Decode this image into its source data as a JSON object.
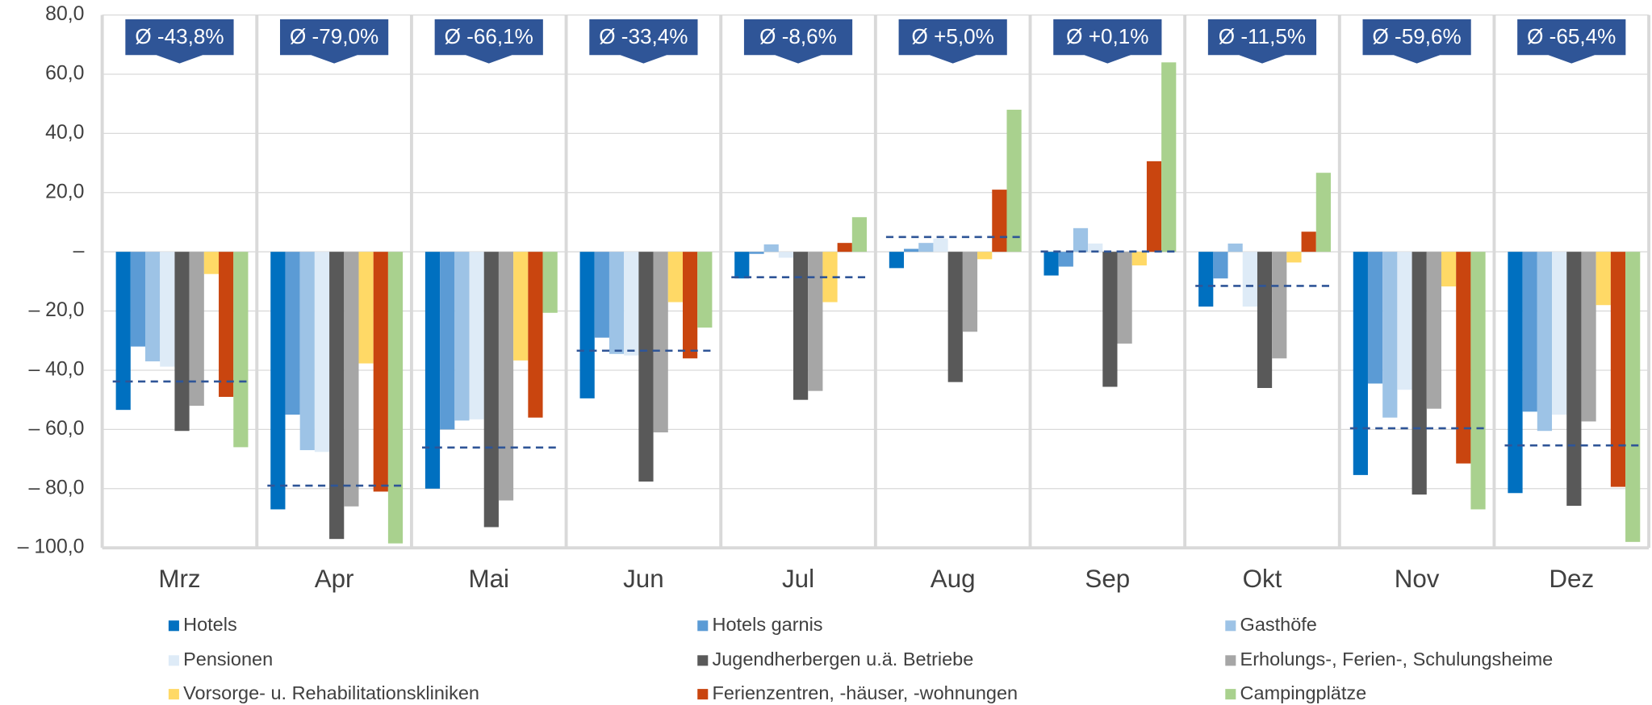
{
  "chart_data": {
    "type": "bar",
    "categories": [
      "Mrz",
      "Apr",
      "Mai",
      "Jun",
      "Jul",
      "Aug",
      "Sep",
      "Okt",
      "Nov",
      "Dez"
    ],
    "series": [
      {
        "name": "Hotels",
        "color": "#0070c0",
        "values": [
          -53.4,
          -87,
          -80,
          -49.5,
          -9,
          -5.5,
          -8,
          -18.5,
          -75.4,
          -81.5
        ]
      },
      {
        "name": "Hotels garnis",
        "color": "#5b9bd5",
        "values": [
          -32,
          -55,
          -60,
          -29,
          -0.7,
          1,
          -5,
          -9,
          -44.5,
          -54
        ]
      },
      {
        "name": "Gasthöfe",
        "color": "#9dc3e6",
        "values": [
          -37,
          -67,
          -57,
          -34.5,
          2.5,
          3,
          8,
          2.8,
          -56,
          -60.5
        ]
      },
      {
        "name": "Pensionen",
        "color": "#deebf7",
        "values": [
          -38.8,
          -67.6,
          -56.6,
          -35,
          -2,
          4.5,
          2.8,
          -18.5,
          -46.6,
          -55
        ]
      },
      {
        "name": "Jugendherbergen u.ä. Betriebe",
        "color": "#595959",
        "values": [
          -60.5,
          -97,
          -93,
          -77.6,
          -50,
          -44,
          -45.6,
          -46,
          -82,
          -85.8
        ]
      },
      {
        "name": "Erholungs-, Ferien-, Schulungsheime",
        "color": "#a6a6a6",
        "values": [
          -52,
          -86,
          -84,
          -61,
          -47,
          -27,
          -31,
          -36,
          -53,
          -57.3
        ]
      },
      {
        "name": "Vorsorge- u. Rehabilitationskliniken",
        "color": "#ffd966",
        "values": [
          -7.5,
          -37.7,
          -36.7,
          -17,
          -17,
          -2.5,
          -4.6,
          -3.6,
          -11.7,
          -18
        ]
      },
      {
        "name": "Ferienzentren, -häuser, -wohnungen",
        "color": "#c9450f",
        "values": [
          -49,
          -81,
          -56,
          -36,
          3,
          21,
          30.6,
          6.8,
          -71.5,
          -79.4
        ]
      },
      {
        "name": "Campingplätze",
        "color": "#a9d18e",
        "values": [
          -66,
          -98.5,
          -20.6,
          -25.6,
          11.7,
          48,
          64,
          26.7,
          -87,
          -98
        ]
      }
    ],
    "averages": [
      -43.8,
      -79.0,
      -66.1,
      -33.4,
      -8.6,
      5.0,
      0.1,
      -11.5,
      -59.6,
      -65.4
    ],
    "average_labels": [
      "Ø -43,8%",
      "Ø -79,0%",
      "Ø -66,1%",
      "Ø -33,4%",
      "Ø -8,6%",
      "Ø +5,0%",
      "Ø +0,1%",
      "Ø -11,5%",
      "Ø -59,6%",
      "Ø -65,4%"
    ],
    "average_color": "#2f5597",
    "ylim": [
      -100,
      80
    ],
    "yticks": [
      {
        "value": 80,
        "label": "80,0"
      },
      {
        "value": 60,
        "label": "60,0"
      },
      {
        "value": 40,
        "label": "40,0"
      },
      {
        "value": 20,
        "label": "20,0"
      },
      {
        "value": 0,
        "label": "–"
      },
      {
        "value": -20,
        "label": "– 20,0"
      },
      {
        "value": -40,
        "label": "– 40,0"
      },
      {
        "value": -60,
        "label": "– 60,0"
      },
      {
        "value": -80,
        "label": "– 80,0"
      },
      {
        "value": -100,
        "label": "– 100,0"
      }
    ],
    "grid": true,
    "legend": "bottom"
  }
}
